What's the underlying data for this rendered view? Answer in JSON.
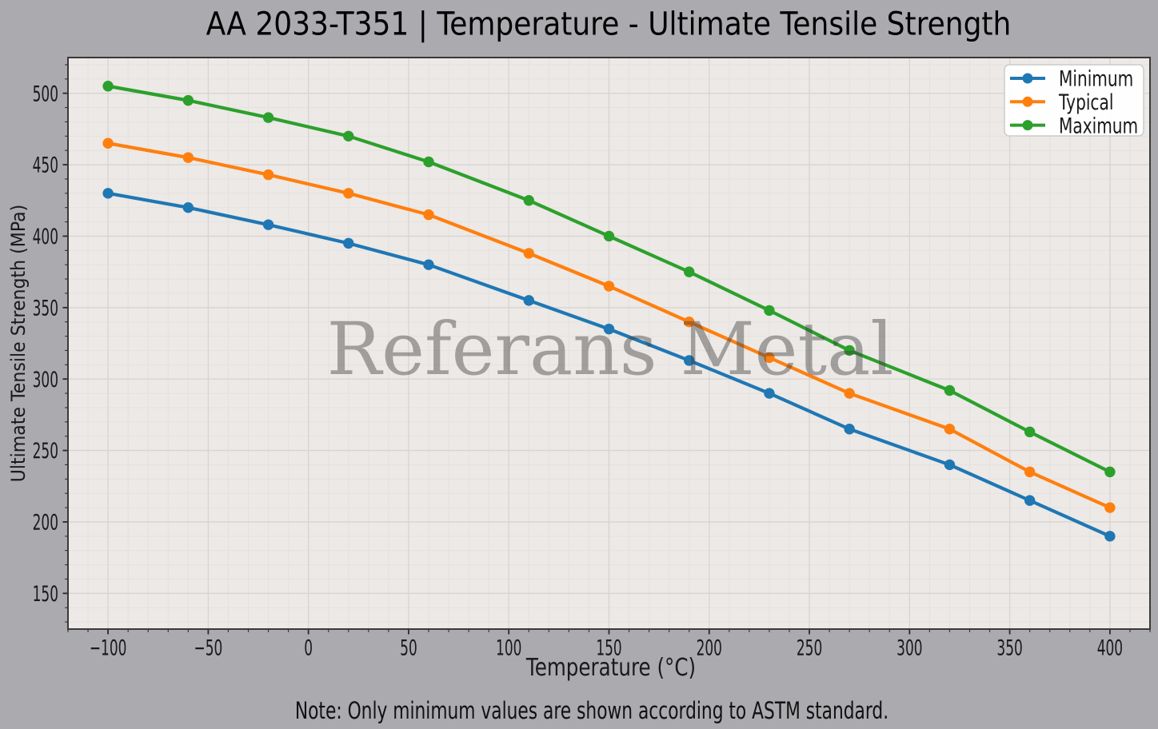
{
  "title": "AA 2033-T351 | Temperature - Ultimate Tensile Strength",
  "note": "Note: Only minimum values are shown according to ASTM standard.",
  "watermark": "Referans Metal",
  "chart_data": {
    "type": "line",
    "title": "AA 2033-T351 | Temperature - Ultimate Tensile Strength",
    "xlabel": "Temperature (°C)",
    "ylabel": "Ultimate Tensile Strength (MPa)",
    "x": [
      -100,
      -60,
      -20,
      20,
      60,
      110,
      150,
      190,
      230,
      270,
      320,
      360,
      400
    ],
    "series": [
      {
        "name": "Minimum",
        "color": "#1f77b4",
        "values": [
          430,
          420,
          408,
          395,
          380,
          355,
          335,
          313,
          290,
          265,
          240,
          215,
          190
        ]
      },
      {
        "name": "Typical",
        "color": "#ff7f0e",
        "values": [
          465,
          455,
          443,
          430,
          415,
          388,
          365,
          340,
          315,
          290,
          265,
          235,
          210
        ]
      },
      {
        "name": "Maximum",
        "color": "#2ca02c",
        "values": [
          505,
          495,
          483,
          470,
          452,
          425,
          400,
          375,
          348,
          320,
          292,
          263,
          235
        ]
      }
    ],
    "xlim": [
      -120,
      420
    ],
    "ylim": [
      125,
      525
    ],
    "xticks": [
      -100,
      -50,
      0,
      50,
      100,
      150,
      200,
      250,
      300,
      350,
      400
    ],
    "yticks": [
      150,
      200,
      250,
      300,
      350,
      400,
      450,
      500
    ],
    "minor_step_x": 10,
    "minor_step_y": 10,
    "grid": "major+minor",
    "legend_position": "upper right",
    "legend_labels": [
      "Minimum",
      "Typical",
      "Maximum"
    ],
    "watermark": "Referans Metal",
    "note": "Note: Only minimum values are shown according to ASTM standard.",
    "colors": {
      "figure_bg": "#aaaaaf",
      "axes_bg": "#ece9e6",
      "grid_major": "#d7d4d1",
      "grid_minor": "#e4e1de",
      "spine": "#3a3a3a",
      "tick": "#2a2a2a",
      "text": "#1a1a1a",
      "watermark": "#3f3f3f"
    }
  }
}
